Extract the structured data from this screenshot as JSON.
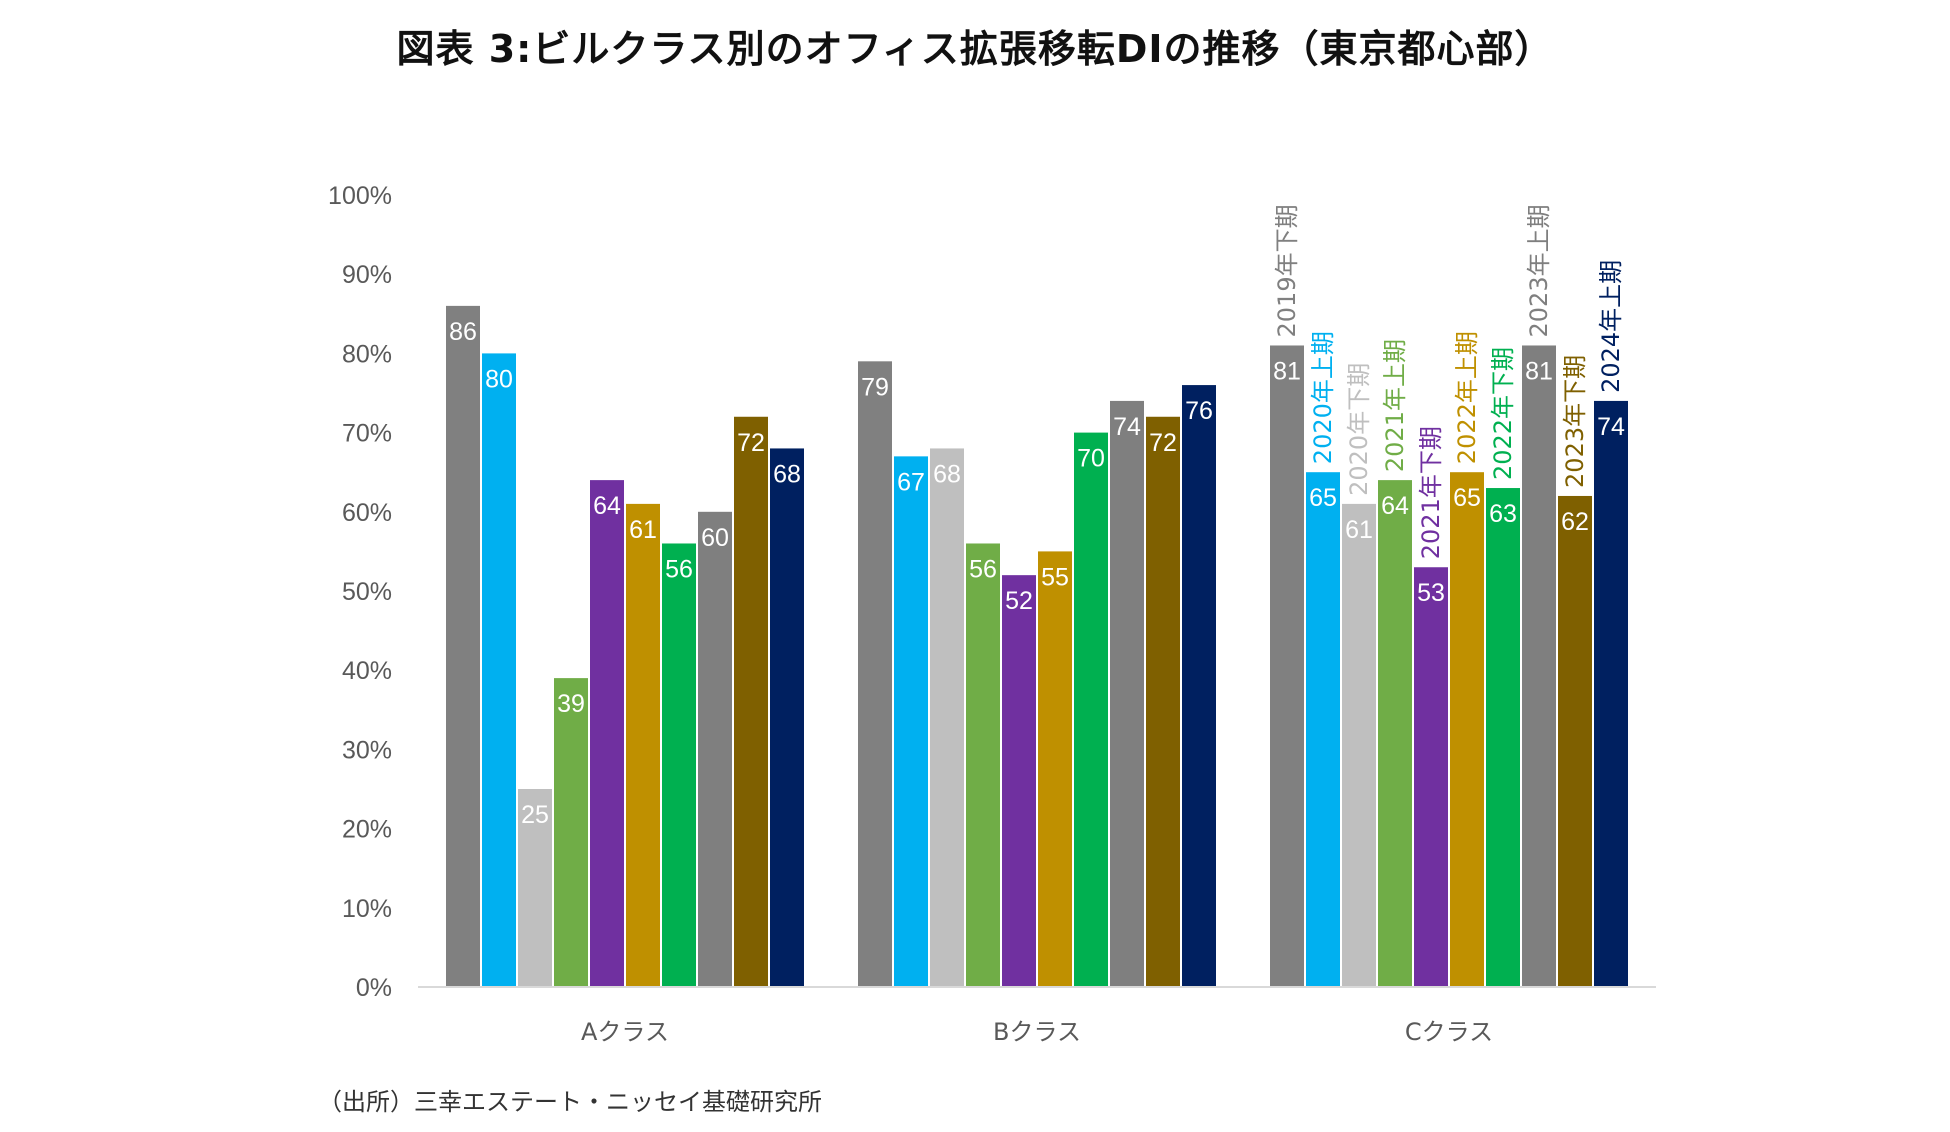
{
  "title": "図表 3:ビルクラス別のオフィス拡張移転DIの推移（東京都心部）",
  "source": "（出所）三幸エステート・ニッセイ基礎研究所",
  "chart_data": {
    "type": "bar",
    "title": "図表 3:ビルクラス別のオフィス拡張移転DIの推移（東京都心部）",
    "categories": [
      "Aクラス",
      "Bクラス",
      "Cクラス"
    ],
    "y_ticks": [
      "0%",
      "10%",
      "20%",
      "30%",
      "40%",
      "50%",
      "60%",
      "70%",
      "80%",
      "90%",
      "100%"
    ],
    "ylim": [
      0,
      100
    ],
    "grid": false,
    "series": [
      {
        "name": "2019年下期",
        "color": "#808080",
        "values": [
          86,
          79,
          81
        ]
      },
      {
        "name": "2020年上期",
        "color": "#00B0F0",
        "values": [
          80,
          67,
          65
        ]
      },
      {
        "name": "2020年下期",
        "color": "#BFBFBF",
        "values": [
          25,
          68,
          61
        ]
      },
      {
        "name": "2021年上期",
        "color": "#70AD47",
        "values": [
          39,
          56,
          64
        ]
      },
      {
        "name": "2021年下期",
        "color": "#7030A0",
        "values": [
          64,
          52,
          53
        ]
      },
      {
        "name": "2022年上期",
        "color": "#BF9000",
        "values": [
          61,
          55,
          65
        ]
      },
      {
        "name": "2022年下期",
        "color": "#00B050",
        "values": [
          56,
          70,
          63
        ]
      },
      {
        "name": "2023年上期",
        "color": "#7F7F7F",
        "values": [
          60,
          74,
          81
        ]
      },
      {
        "name": "2023年下期",
        "color": "#7F6000",
        "values": [
          72,
          72,
          62
        ]
      },
      {
        "name": "2024年上期",
        "color": "#002060",
        "values": [
          68,
          76,
          74
        ]
      }
    ],
    "legend_position": "inline-above-third-group"
  }
}
